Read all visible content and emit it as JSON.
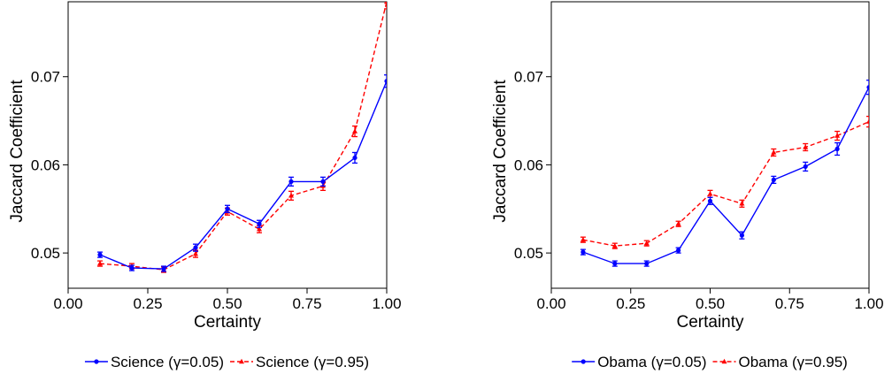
{
  "chart_data": [
    {
      "type": "line",
      "xlabel": "Certainty",
      "ylabel": "Jaccard Coefficient",
      "xlim": [
        0.0,
        1.0
      ],
      "ylim": [
        0.046,
        0.0785
      ],
      "x_ticks": [
        "0.00",
        "0.25",
        "0.50",
        "0.75",
        "1.00"
      ],
      "y_ticks": [
        "0.05",
        "0.06",
        "0.07"
      ],
      "grid": false,
      "legend_position": "bottom",
      "x": [
        0.1,
        0.2,
        0.3,
        0.4,
        0.5,
        0.6,
        0.7,
        0.8,
        0.9,
        1.0
      ],
      "series": [
        {
          "name": "Science (γ=0.05)",
          "color": "#0000ff",
          "line_style": "solid",
          "marker": "circle",
          "values": [
            0.0498,
            0.0483,
            0.0482,
            0.0506,
            0.055,
            0.0533,
            0.0581,
            0.0581,
            0.0608,
            0.0695
          ],
          "error": [
            0.0003,
            0.0003,
            0.0003,
            0.0004,
            0.0004,
            0.0004,
            0.0005,
            0.0005,
            0.0006,
            0.0007
          ]
        },
        {
          "name": "Science (γ=0.95)",
          "color": "#ff0000",
          "line_style": "dashed",
          "marker": "triangle",
          "values": [
            0.0488,
            0.0485,
            0.0481,
            0.0499,
            0.0547,
            0.0527,
            0.0565,
            0.0576,
            0.0638,
            0.0785
          ],
          "error": [
            0.0003,
            0.0003,
            0.0003,
            0.0004,
            0.0004,
            0.0004,
            0.0005,
            0.0005,
            0.0006,
            0.0008
          ]
        }
      ]
    },
    {
      "type": "line",
      "xlabel": "Certainty",
      "ylabel": "Jaccard Coefficient",
      "xlim": [
        0.0,
        1.0
      ],
      "ylim": [
        0.046,
        0.0785
      ],
      "x_ticks": [
        "0.00",
        "0.25",
        "0.50",
        "0.75",
        "1.00"
      ],
      "y_ticks": [
        "0.05",
        "0.06",
        "0.07"
      ],
      "grid": false,
      "legend_position": "bottom",
      "x": [
        0.1,
        0.2,
        0.3,
        0.4,
        0.5,
        0.6,
        0.7,
        0.8,
        0.9,
        1.0
      ],
      "series": [
        {
          "name": "Obama (γ=0.05)",
          "color": "#0000ff",
          "line_style": "solid",
          "marker": "circle",
          "values": [
            0.0501,
            0.0488,
            0.0488,
            0.0503,
            0.0559,
            0.052,
            0.0583,
            0.0598,
            0.0618,
            0.0688
          ],
          "error": [
            0.0003,
            0.0003,
            0.0003,
            0.0003,
            0.0004,
            0.0004,
            0.0004,
            0.0005,
            0.0007,
            0.0008
          ]
        },
        {
          "name": "Obama (γ=0.95)",
          "color": "#ff0000",
          "line_style": "dashed",
          "marker": "triangle",
          "values": [
            0.0515,
            0.0508,
            0.0511,
            0.0533,
            0.0567,
            0.0556,
            0.0614,
            0.062,
            0.0633,
            0.0649
          ],
          "error": [
            0.0003,
            0.0003,
            0.0003,
            0.0003,
            0.0004,
            0.0004,
            0.0004,
            0.0004,
            0.0005,
            0.0006
          ]
        }
      ]
    }
  ]
}
